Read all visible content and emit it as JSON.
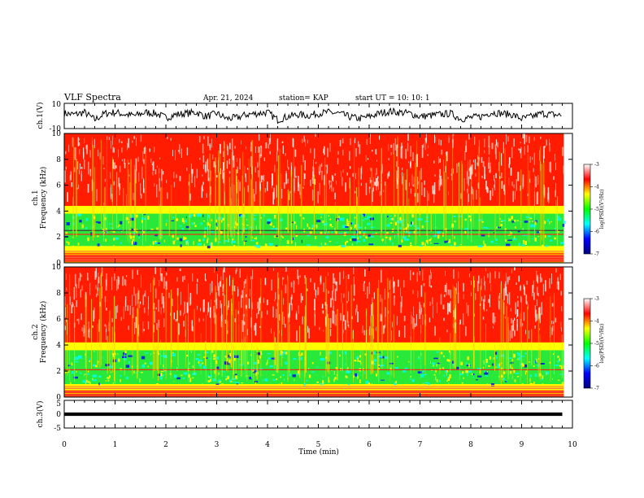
{
  "header": {
    "title": "VLF Spectra",
    "date": "Apr. 21, 2024",
    "station": "station= KAP",
    "start": "start  UT =   10: 10: 1"
  },
  "colors": {
    "scale": [
      "#000080",
      "#0000ff",
      "#00ffff",
      "#00ff00",
      "#ffff00",
      "#ff0000",
      "#ffffff"
    ],
    "trace": "#000000"
  },
  "chart_data": [
    {
      "type": "line",
      "ylabel": "ch.1(V)",
      "ylim": [
        -10,
        10
      ],
      "yticks": [
        "10",
        "-10"
      ],
      "xlim": [
        0,
        10
      ],
      "series": [
        {
          "x": [
            0,
            0.2,
            0.4,
            0.6,
            0.8,
            1.0,
            1.2,
            1.4,
            1.6,
            1.8,
            2.0,
            2.2,
            2.4,
            2.6,
            2.8,
            3.0,
            3.2,
            3.4,
            3.6,
            3.8,
            4.0,
            4.2,
            4.4,
            4.6,
            4.8,
            5.0,
            5.2,
            5.4,
            5.6,
            5.8,
            6.0,
            6.2,
            6.4,
            6.6,
            6.8,
            7.0,
            7.2,
            7.4,
            7.6,
            7.8,
            8.0,
            8.2,
            8.4,
            8.6,
            8.8,
            9.0,
            9.2,
            9.4,
            9.6,
            9.8
          ],
          "y": [
            2,
            1,
            3,
            -4,
            2,
            3,
            1,
            0,
            3,
            2,
            -2,
            1,
            2,
            3,
            -1,
            2,
            -3,
            -2,
            1,
            2,
            3,
            -4,
            -1,
            1,
            0,
            2,
            3,
            2,
            -1,
            -3,
            -1,
            2,
            4,
            3,
            2,
            -1,
            0,
            1,
            2,
            -3,
            -2,
            -1,
            3,
            2,
            1,
            -3,
            -1,
            2,
            1,
            0
          ]
        }
      ]
    },
    {
      "type": "heatmap",
      "ylabel": "ch.1\nFrequency (kHz)",
      "ylim": [
        0,
        10
      ],
      "yticks": [
        "0",
        "2",
        "4",
        "6",
        "8",
        "10"
      ],
      "xlim": [
        0,
        10
      ],
      "colorbar": {
        "label": "log(PSD)(V²/Hz)",
        "range": [
          -7,
          -3
        ],
        "ticks": [
          "-3",
          "-4",
          "-5",
          "-6",
          "-7"
        ]
      },
      "bands_khz": {
        "low_noise_edge": 0.6,
        "green_band": [
          1.3,
          3.8
        ],
        "strong_lines": [
          2.2,
          2.5
        ]
      }
    },
    {
      "type": "heatmap",
      "ylabel": "ch.2\nFrequency (kHz)",
      "ylim": [
        0,
        10
      ],
      "yticks": [
        "0",
        "2",
        "4",
        "6",
        "8",
        "10"
      ],
      "xlim": [
        0,
        10
      ],
      "colorbar": {
        "label": "log(PSD)(V²/Hz)",
        "range": [
          -7,
          -3
        ],
        "ticks": [
          "-3",
          "-4",
          "-5",
          "-6",
          "-7"
        ]
      },
      "bands_khz": {
        "low_noise_edge": 0.6,
        "green_band": [
          1.0,
          3.6
        ],
        "strong_lines": [
          2.1
        ]
      }
    },
    {
      "type": "line",
      "ylabel": "ch.3(V)",
      "ylim": [
        -5,
        5
      ],
      "yticks": [
        "5",
        "0",
        "-5"
      ],
      "xlim": [
        0,
        10
      ],
      "series": [
        {
          "x": [
            0,
            9.8
          ],
          "y": [
            0,
            0
          ],
          "band": [
            -0.7,
            0.7
          ]
        }
      ]
    }
  ],
  "xaxis": {
    "label": "Time (min)",
    "ticks": [
      "0",
      "1",
      "2",
      "3",
      "4",
      "5",
      "6",
      "7",
      "8",
      "9",
      "10"
    ]
  }
}
